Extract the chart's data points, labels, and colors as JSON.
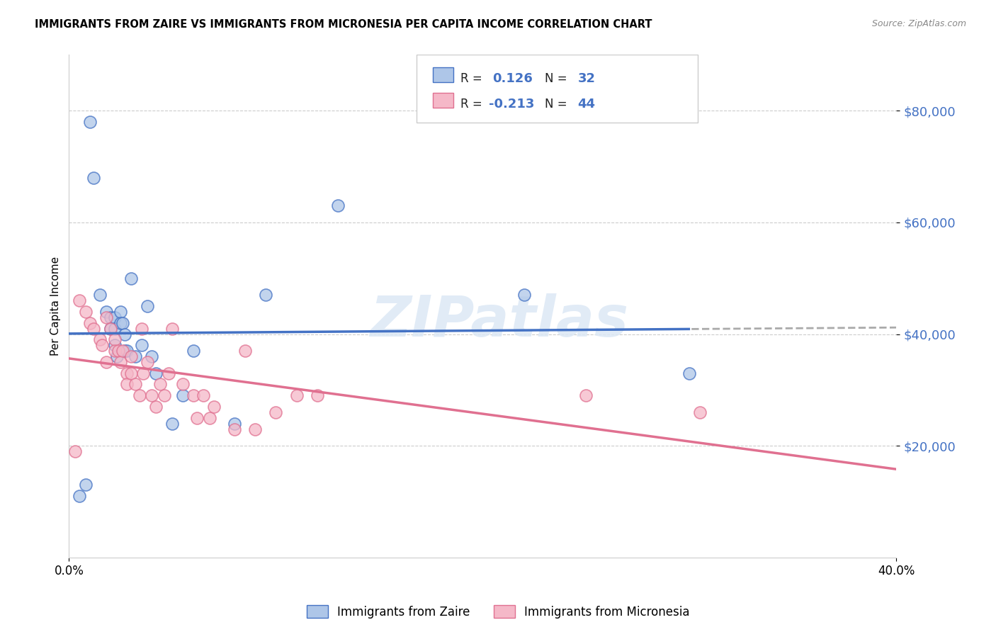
{
  "title": "IMMIGRANTS FROM ZAIRE VS IMMIGRANTS FROM MICRONESIA PER CAPITA INCOME CORRELATION CHART",
  "source": "Source: ZipAtlas.com",
  "ylabel": "Per Capita Income",
  "x_min": 0.0,
  "x_max": 0.4,
  "y_min": 0,
  "y_max": 90000,
  "x_tick_labels": [
    "0.0%",
    "40.0%"
  ],
  "y_tick_vals": [
    20000,
    40000,
    60000,
    80000
  ],
  "y_tick_labels": [
    "$20,000",
    "$40,000",
    "$60,000",
    "$80,000"
  ],
  "legend_label1": "Immigrants from Zaire",
  "legend_label2": "Immigrants from Micronesia",
  "R1": "0.126",
  "N1": "32",
  "R2": "-0.213",
  "N2": "44",
  "color_zaire_fill": "#aec6e8",
  "color_zaire_edge": "#4472c4",
  "color_micronesia_fill": "#f5b8c8",
  "color_micronesia_edge": "#e07090",
  "color_zaire_line": "#4472c4",
  "color_micronesia_line": "#e07090",
  "color_text_blue": "#4472c4",
  "watermark": "ZIPatlas",
  "zaire_x": [
    0.005,
    0.008,
    0.01,
    0.012,
    0.015,
    0.018,
    0.02,
    0.02,
    0.022,
    0.022,
    0.022,
    0.023,
    0.025,
    0.025,
    0.026,
    0.027,
    0.027,
    0.028,
    0.03,
    0.032,
    0.035,
    0.038,
    0.04,
    0.042,
    0.05,
    0.055,
    0.06,
    0.08,
    0.095,
    0.13,
    0.22,
    0.3
  ],
  "zaire_y": [
    11000,
    13000,
    78000,
    68000,
    47000,
    44000,
    43000,
    41000,
    43000,
    41000,
    38000,
    36000,
    44000,
    42000,
    42000,
    40000,
    37000,
    37000,
    50000,
    36000,
    38000,
    45000,
    36000,
    33000,
    24000,
    29000,
    37000,
    24000,
    47000,
    63000,
    47000,
    33000
  ],
  "micronesia_x": [
    0.003,
    0.005,
    0.008,
    0.01,
    0.012,
    0.015,
    0.016,
    0.018,
    0.018,
    0.02,
    0.022,
    0.022,
    0.024,
    0.025,
    0.026,
    0.028,
    0.028,
    0.03,
    0.03,
    0.032,
    0.034,
    0.035,
    0.036,
    0.038,
    0.04,
    0.042,
    0.044,
    0.046,
    0.048,
    0.05,
    0.055,
    0.06,
    0.062,
    0.065,
    0.068,
    0.07,
    0.08,
    0.085,
    0.09,
    0.1,
    0.11,
    0.12,
    0.25,
    0.305
  ],
  "micronesia_y": [
    19000,
    46000,
    44000,
    42000,
    41000,
    39000,
    38000,
    43000,
    35000,
    41000,
    39000,
    37000,
    37000,
    35000,
    37000,
    33000,
    31000,
    36000,
    33000,
    31000,
    29000,
    41000,
    33000,
    35000,
    29000,
    27000,
    31000,
    29000,
    33000,
    41000,
    31000,
    29000,
    25000,
    29000,
    25000,
    27000,
    23000,
    37000,
    23000,
    26000,
    29000,
    29000,
    29000,
    26000
  ]
}
